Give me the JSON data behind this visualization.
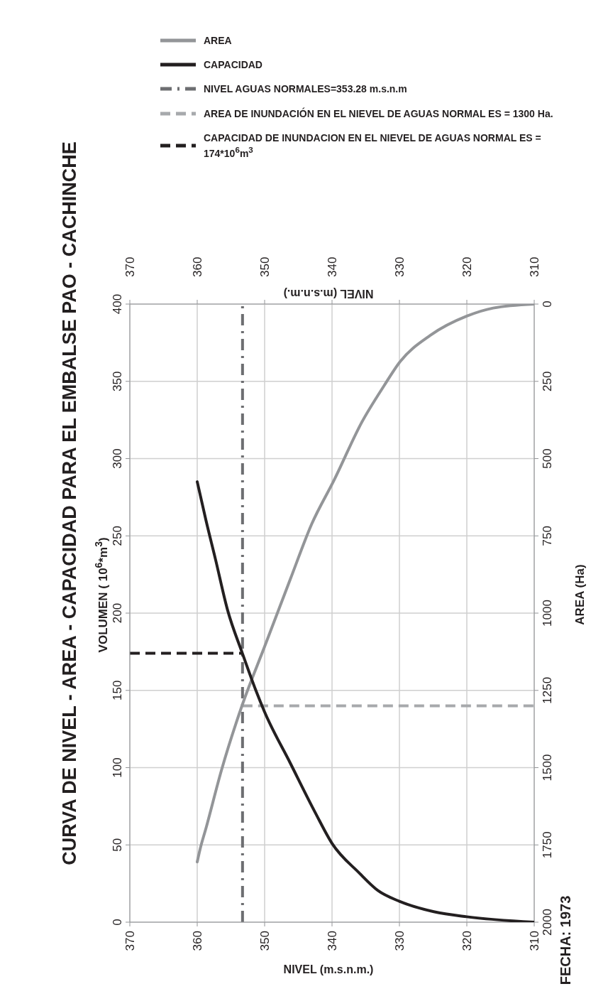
{
  "chart_data": {
    "type": "line",
    "title": "CURVA DE NIVEL - AREA - CAPACIDAD PARA EL EMBALSE PAO - CACHINCHE",
    "xlabel": "NIVEL (m.s.n.m.)",
    "x2label": "NIVEL (m.s.n.m.)",
    "ylabel": "VOLUMEN ( 10$^{6}$*m$^{3}$)",
    "y2label": "AREA (Ha)",
    "xlim": [
      370,
      310
    ],
    "xticks": [
      370,
      360,
      350,
      340,
      330,
      320,
      310
    ],
    "x2lim": [
      370,
      310
    ],
    "x2ticks": [
      370,
      360,
      350,
      340,
      330,
      320,
      310
    ],
    "ylim": [
      0,
      400
    ],
    "yticks": [
      0,
      50,
      100,
      150,
      200,
      250,
      300,
      350,
      400
    ],
    "y2lim": [
      2000,
      0
    ],
    "y2ticks": [
      2000,
      1750,
      1500,
      1250,
      1000,
      750,
      500,
      250,
      0
    ],
    "grid": true,
    "legend": "top",
    "marker": "none",
    "series": [
      {
        "name": "AREA",
        "color": "#939598",
        "axis": "y2",
        "x": [
          310,
          316.1,
          320,
          325.4,
          330,
          332.3,
          335.6,
          339.7,
          343,
          346.2,
          350,
          353.3,
          356.4,
          358.7,
          359.6,
          360
        ],
        "values": [
          0,
          13,
          39,
          101,
          189,
          265,
          383,
          570,
          711,
          891,
          1108,
          1296,
          1508,
          1696,
          1766,
          1805
        ]
      },
      {
        "name": "CAPACIDAD",
        "color": "#231f20",
        "x": [
          310,
          320,
          324.9,
          330,
          333.2,
          336,
          340,
          342.5,
          346.2,
          350,
          351.3,
          353.3,
          355.5,
          357.3,
          358.7,
          360
        ],
        "values": [
          0,
          3.5,
          6.8,
          13.5,
          20.5,
          32,
          51,
          71,
          103,
          136,
          150,
          174,
          202,
          235,
          260,
          285
        ]
      }
    ],
    "ref_lines": [
      {
        "axis": "x",
        "value": 353.28,
        "label": "NIVEL AGUAS NORMALES=353.28 m.s.n.m",
        "color": "#6d6e71",
        "line_style": "dashdot"
      },
      {
        "axis": "y2",
        "value": 1300,
        "label": "AREA DE INUNDACIÓN EN EL NIEVEL DE AGUAS NORMAL ES  = 1300 Ha.",
        "color": "#a7a9ac",
        "line_style": "dashed"
      },
      {
        "axis": "y",
        "value": 174,
        "label": "CAPACIDAD DE INUNDACION EN EL NIEVEL DE AGUAS NORMAL ES  = 174*10$^{6}$m$^{3}$",
        "color": "#231f20",
        "line_style": "dashed"
      }
    ],
    "annotations": [
      "FECHA: 1973"
    ]
  }
}
